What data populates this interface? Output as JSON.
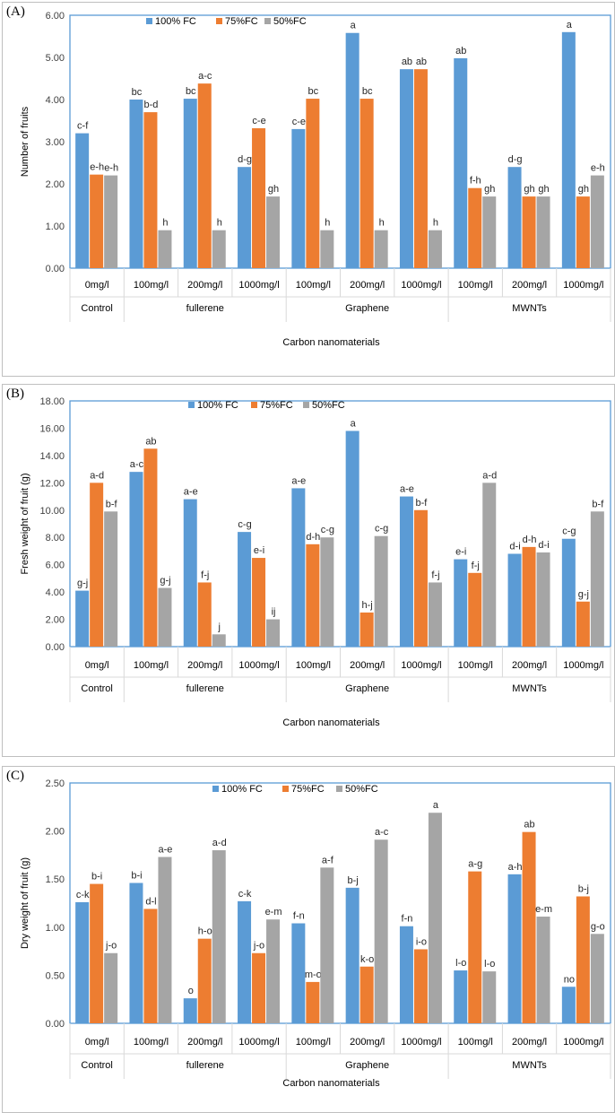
{
  "chart_data": [
    {
      "type": "bar",
      "panel_label": "(A)",
      "ylabel": "Number of fruits",
      "xlabel": "Carbon nanomaterials",
      "ylim": [
        0,
        6
      ],
      "yticks": [
        "0.00",
        "1.00",
        "2.00",
        "3.00",
        "4.00",
        "5.00",
        "6.00"
      ],
      "categories": [
        "0mg/l",
        "100mg/l",
        "200mg/l",
        "1000mg/l",
        "100mg/l",
        "200mg/l",
        "1000mg/l",
        "100mg/l",
        "200mg/l",
        "1000mg/l"
      ],
      "groups": [
        {
          "name": "Control",
          "count": 1
        },
        {
          "name": "fullerene",
          "count": 3
        },
        {
          "name": "Graphene",
          "count": 3
        },
        {
          "name": "MWNTs",
          "count": 3
        }
      ],
      "series": [
        {
          "name": "100% FC",
          "color": "#5b9bd5",
          "values": [
            3.2,
            4.0,
            4.02,
            2.4,
            3.3,
            5.58,
            4.72,
            4.98,
            2.4,
            5.6
          ],
          "labels": [
            "c-f",
            "bc",
            "bc",
            "d-g",
            "c-e",
            "a",
            "ab",
            "ab",
            "d-g",
            "a"
          ]
        },
        {
          "name": "75%FC",
          "color": "#ed7d31",
          "values": [
            2.22,
            3.7,
            4.38,
            3.32,
            4.02,
            4.02,
            4.72,
            1.9,
            1.7,
            1.7
          ],
          "labels": [
            "e-h",
            "b-d",
            "a-c",
            "c-e",
            "bc",
            "bc",
            "ab",
            "f-h",
            "gh",
            "gh"
          ]
        },
        {
          "name": "50%FC",
          "color": "#a5a5a5",
          "values": [
            2.2,
            0.9,
            0.9,
            1.7,
            0.9,
            0.9,
            0.9,
            1.7,
            1.7,
            2.2
          ],
          "labels": [
            "e-h",
            "h",
            "h",
            "gh",
            "h",
            "h",
            "h",
            "gh",
            "gh",
            "e-h"
          ]
        }
      ]
    },
    {
      "type": "bar",
      "panel_label": "(B)",
      "ylabel": "Fresh  weight of fruit (g)",
      "xlabel": "Carbon nanomaterials",
      "ylim": [
        0,
        18
      ],
      "yticks": [
        "0.00",
        "2.00",
        "4.00",
        "6.00",
        "8.00",
        "10.00",
        "12.00",
        "14.00",
        "16.00",
        "18.00"
      ],
      "categories": [
        "0mg/l",
        "100mg/l",
        "200mg/l",
        "1000mg/l",
        "100mg/l",
        "200mg/l",
        "1000mg/l",
        "100mg/l",
        "200mg/l",
        "1000mg/l"
      ],
      "groups": [
        {
          "name": "Control",
          "count": 1
        },
        {
          "name": "fullerene",
          "count": 3
        },
        {
          "name": "Graphene",
          "count": 3
        },
        {
          "name": "MWNTs",
          "count": 3
        }
      ],
      "series": [
        {
          "name": "100% FC",
          "color": "#5b9bd5",
          "values": [
            4.1,
            12.8,
            10.8,
            8.4,
            11.6,
            15.8,
            11.0,
            6.4,
            6.8,
            7.9
          ],
          "labels": [
            "g-j",
            "a-c",
            "a-e",
            "c-g",
            "a-e",
            "a",
            "a-e",
            "e-i",
            "d-i",
            "c-g"
          ]
        },
        {
          "name": "75%FC",
          "color": "#ed7d31",
          "values": [
            12.0,
            14.5,
            4.7,
            6.5,
            7.5,
            2.5,
            10.0,
            5.4,
            7.3,
            3.3
          ],
          "labels": [
            "a-d",
            "ab",
            "f-j",
            "e-i",
            "d-h",
            "h-j",
            "b-f",
            "f-j",
            "d-h",
            "g-j"
          ]
        },
        {
          "name": "50%FC",
          "color": "#a5a5a5",
          "values": [
            9.9,
            4.3,
            0.9,
            2.0,
            8.0,
            8.1,
            4.7,
            12.0,
            6.9,
            9.9
          ],
          "labels": [
            "b-f",
            "g-j",
            "j",
            "ij",
            "c-g",
            "c-g",
            "f-j",
            "a-d",
            "d-i",
            "b-f"
          ]
        }
      ]
    },
    {
      "type": "bar",
      "panel_label": "(C)",
      "ylabel": "Dry weight of fruit (g)",
      "xlabel": "Carbon nanomaterials",
      "ylim": [
        0,
        2.5
      ],
      "yticks": [
        "0.00",
        "0.50",
        "1.00",
        "1.50",
        "2.00",
        "2.50"
      ],
      "categories": [
        "0mg/l",
        "100mg/l",
        "200mg/l",
        "1000mg/l",
        "100mg/l",
        "200mg/l",
        "1000mg/l",
        "100mg/l",
        "200mg/l",
        "1000mg/l"
      ],
      "groups": [
        {
          "name": "Control",
          "count": 1
        },
        {
          "name": "fullerene",
          "count": 3
        },
        {
          "name": "Graphene",
          "count": 3
        },
        {
          "name": "MWNTs",
          "count": 3
        }
      ],
      "series": [
        {
          "name": "100% FC",
          "color": "#5b9bd5",
          "values": [
            1.26,
            1.46,
            0.26,
            1.27,
            1.04,
            1.41,
            1.01,
            0.55,
            1.55,
            0.38
          ],
          "labels": [
            "c-k",
            "b-i",
            "o",
            "c-k",
            "f-n",
            "b-j",
            "f-n",
            "l-o",
            "a-h",
            "no"
          ]
        },
        {
          "name": "75%FC",
          "color": "#ed7d31",
          "values": [
            1.45,
            1.19,
            0.88,
            0.73,
            0.43,
            0.59,
            0.77,
            1.58,
            1.99,
            1.32
          ],
          "labels": [
            "b-i",
            "d-l",
            "h-o",
            "j-o",
            "m-o",
            "k-o",
            "i-o",
            "a-g",
            "ab",
            "b-j"
          ]
        },
        {
          "name": "50%FC",
          "color": "#a5a5a5",
          "values": [
            0.73,
            1.73,
            1.8,
            1.08,
            1.62,
            1.91,
            2.19,
            0.54,
            1.11,
            0.93
          ],
          "labels": [
            "j-o",
            "a-e",
            "a-d",
            "e-m",
            "a-f",
            "a-c",
            "a",
            "l-o",
            "e-m",
            "g-o"
          ]
        }
      ]
    }
  ]
}
